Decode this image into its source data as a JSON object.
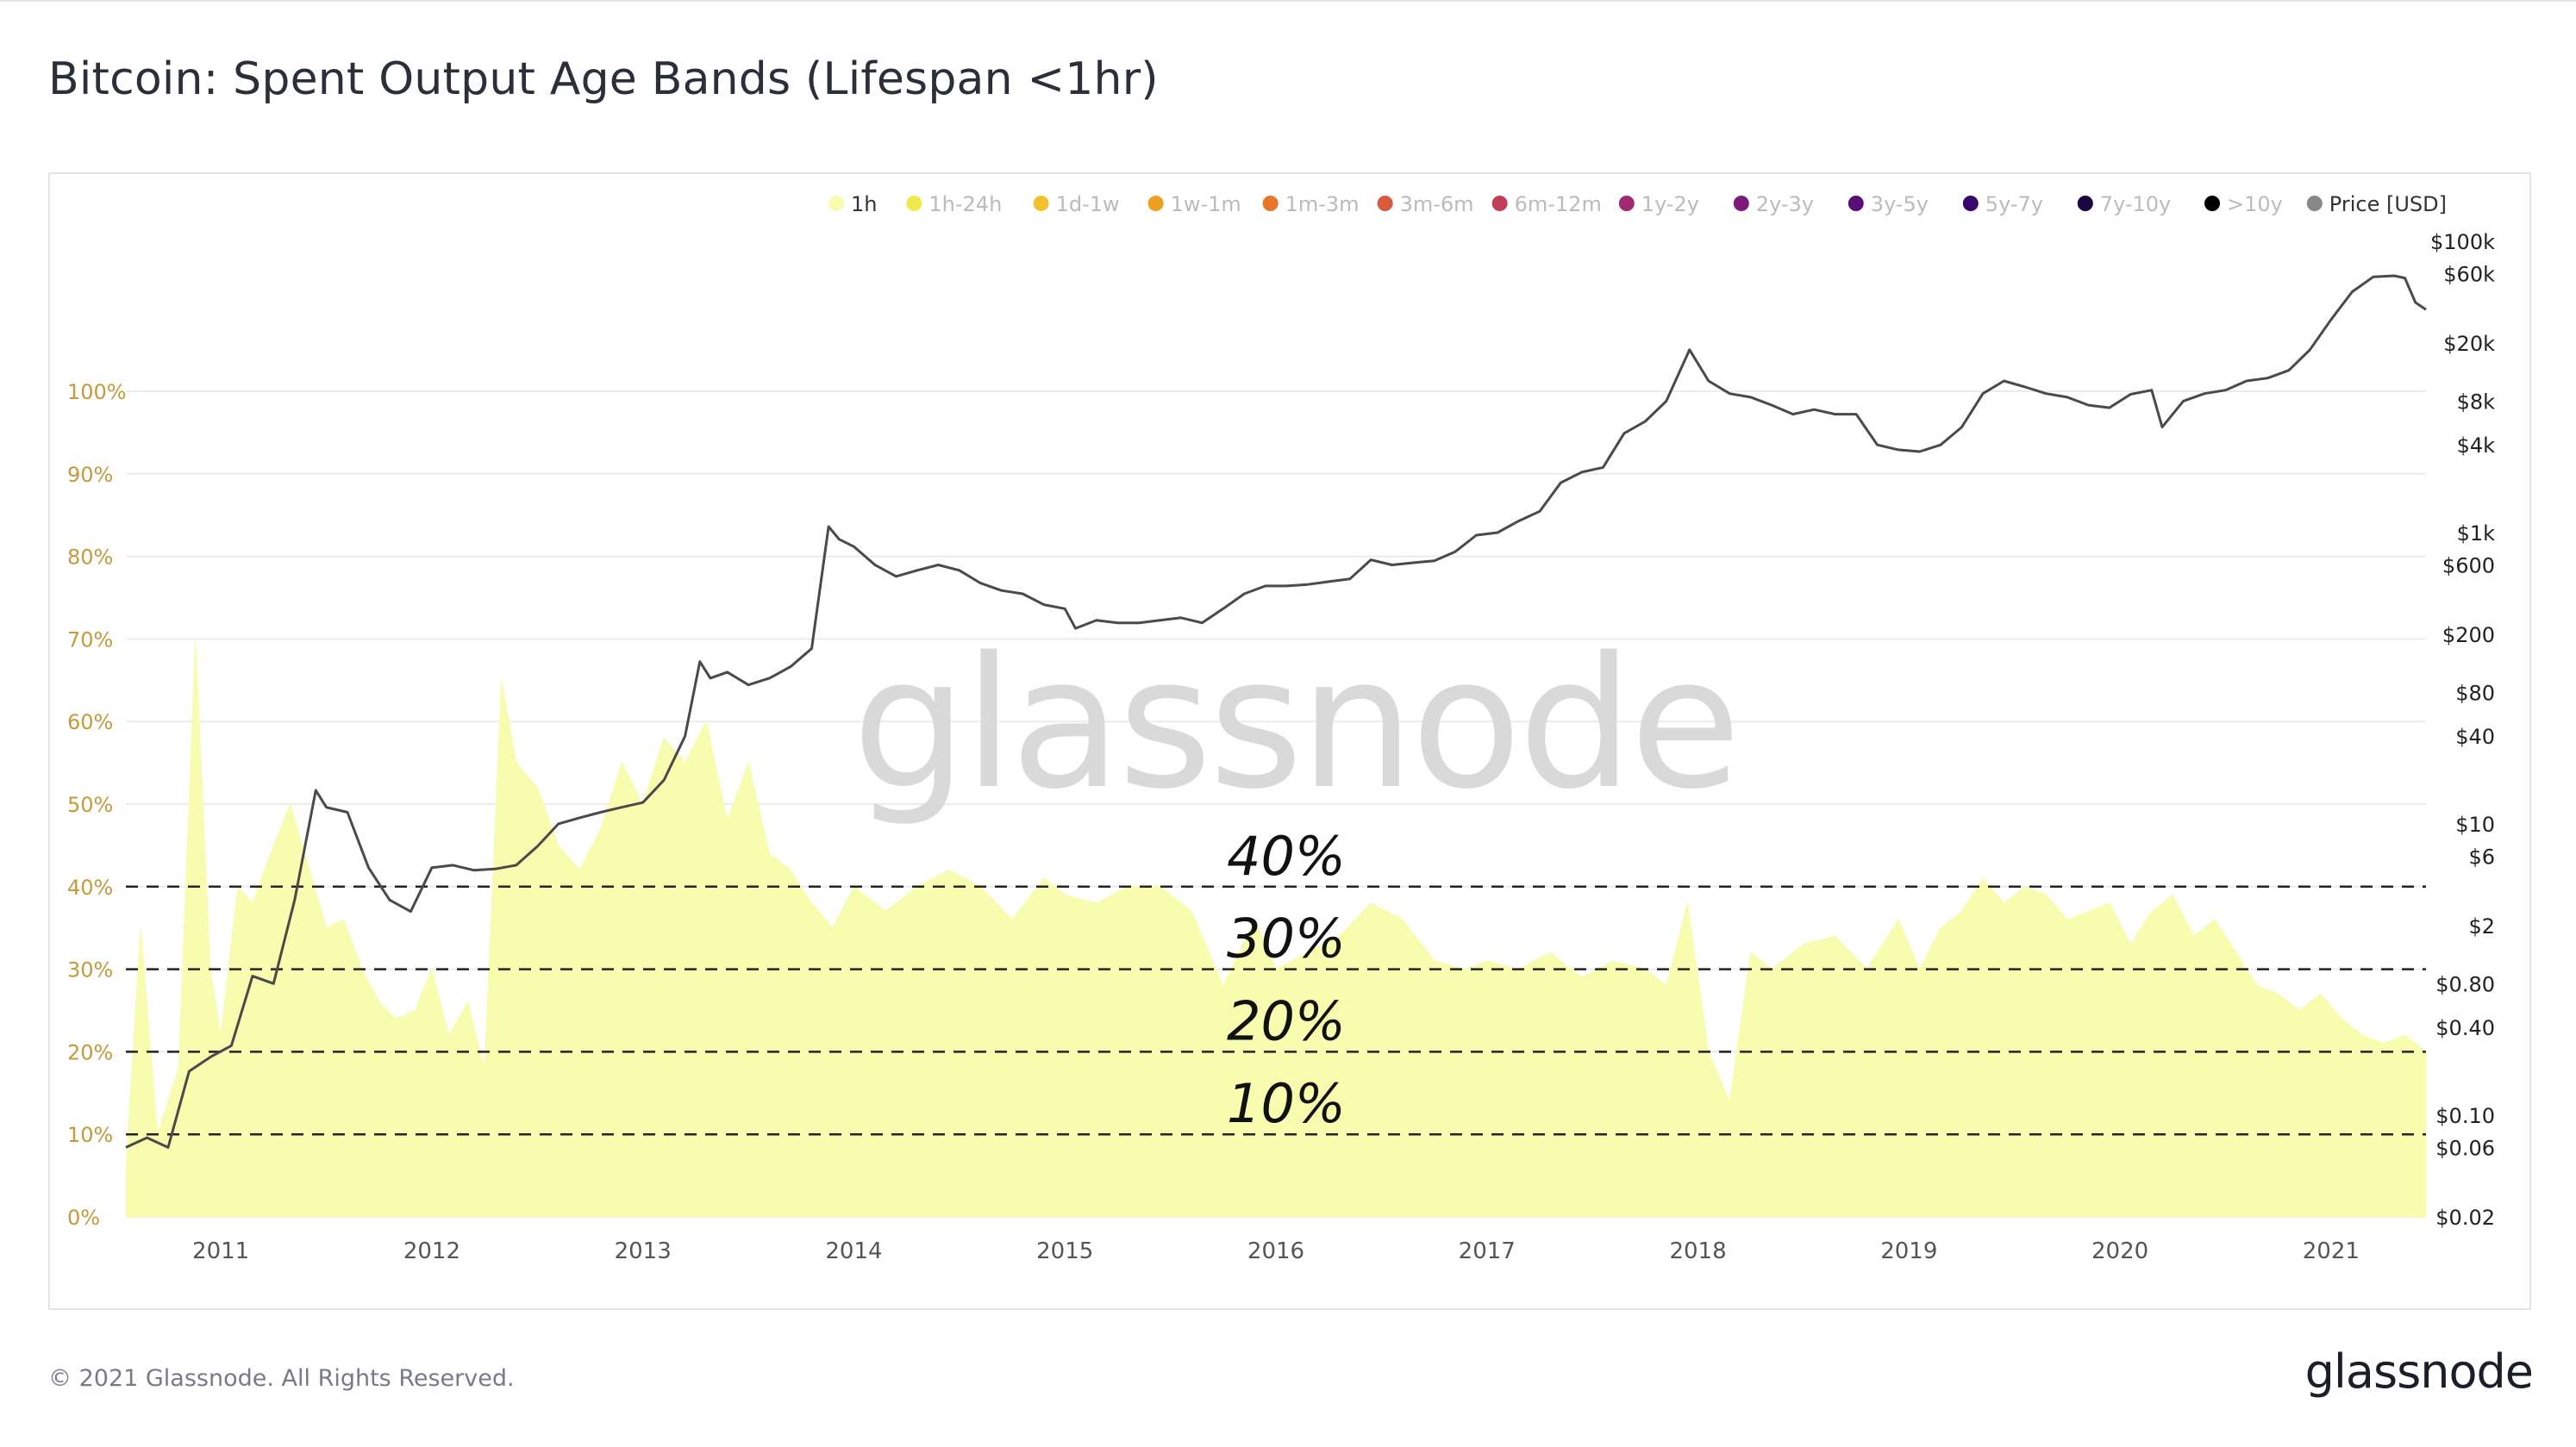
{
  "page": {
    "title": "Bitcoin: Spent Output Age Bands (Lifespan <1hr)",
    "copyright": "© 2021 Glassnode. All Rights Reserved.",
    "logo": "glassnode",
    "watermark": "glassnode"
  },
  "colors": {
    "area_fill": "#f7fcae",
    "price_line": "#4a4a4a",
    "left_tick": "#c49a3a",
    "right_tick": "#222222",
    "x_tick": "#555555",
    "legend_inactive": "#bbbbbb",
    "legend_active": "#333333"
  },
  "chart_data": {
    "type": "area",
    "title": "Bitcoin: Spent Output Age Bands (Lifespan <1hr)",
    "legend_position": "top-right",
    "legend": [
      {
        "label": "1h",
        "color": "#f7fcae",
        "active": true
      },
      {
        "label": "1h-24h",
        "color": "#f2e94e",
        "active": false
      },
      {
        "label": "1d-1w",
        "color": "#f2c12e",
        "active": false
      },
      {
        "label": "1w-1m",
        "color": "#f0a020",
        "active": false
      },
      {
        "label": "1m-3m",
        "color": "#e8742a",
        "active": false
      },
      {
        "label": "3m-6m",
        "color": "#d65a3c",
        "active": false
      },
      {
        "label": "6m-12m",
        "color": "#c0405a",
        "active": false
      },
      {
        "label": "1y-2y",
        "color": "#a02a70",
        "active": false
      },
      {
        "label": "2y-3y",
        "color": "#7e1a7a",
        "active": false
      },
      {
        "label": "3y-5y",
        "color": "#5a0f78",
        "active": false
      },
      {
        "label": "5y-7y",
        "color": "#36086a",
        "active": false
      },
      {
        "label": "7y-10y",
        "color": "#1a0640",
        "active": false
      },
      {
        "label": ">10y",
        "color": "#000000",
        "active": false
      },
      {
        "label": "Price [USD]",
        "color": "#888888",
        "active": true
      }
    ],
    "x_axis": {
      "range": [
        2010.55,
        2021.45
      ],
      "ticks": [
        {
          "label": "2011",
          "value": 2011
        },
        {
          "label": "2012",
          "value": 2012
        },
        {
          "label": "2013",
          "value": 2013
        },
        {
          "label": "2014",
          "value": 2014
        },
        {
          "label": "2015",
          "value": 2015
        },
        {
          "label": "2016",
          "value": 2016
        },
        {
          "label": "2017",
          "value": 2017
        },
        {
          "label": "2018",
          "value": 2018
        },
        {
          "label": "2019",
          "value": 2019
        },
        {
          "label": "2020",
          "value": 2020
        },
        {
          "label": "2021",
          "value": 2021
        }
      ]
    },
    "y_left": {
      "range": [
        0,
        100
      ],
      "unit": "%",
      "ticks": [
        {
          "label": "0%",
          "value": 0
        },
        {
          "label": "10%",
          "value": 10
        },
        {
          "label": "20%",
          "value": 20
        },
        {
          "label": "30%",
          "value": 30
        },
        {
          "label": "40%",
          "value": 40
        },
        {
          "label": "50%",
          "value": 50
        },
        {
          "label": "60%",
          "value": 60
        },
        {
          "label": "70%",
          "value": 70
        },
        {
          "label": "80%",
          "value": 80
        },
        {
          "label": "90%",
          "value": 90
        },
        {
          "label": "100%",
          "value": 100
        }
      ]
    },
    "y_right": {
      "scale": "log",
      "range": [
        0.02,
        100000
      ],
      "ticks": [
        {
          "label": "$100k",
          "value": 100000
        },
        {
          "label": "$60k",
          "value": 60000
        },
        {
          "label": "$20k",
          "value": 20000
        },
        {
          "label": "$8k",
          "value": 8000
        },
        {
          "label": "$4k",
          "value": 4000
        },
        {
          "label": "$1k",
          "value": 1000
        },
        {
          "label": "$600",
          "value": 600
        },
        {
          "label": "$200",
          "value": 200
        },
        {
          "label": "$80",
          "value": 80
        },
        {
          "label": "$40",
          "value": 40
        },
        {
          "label": "$10",
          "value": 10
        },
        {
          "label": "$6",
          "value": 6
        },
        {
          "label": "$2",
          "value": 2
        },
        {
          "label": "$0.80",
          "value": 0.8
        },
        {
          "label": "$0.40",
          "value": 0.4
        },
        {
          "label": "$0.10",
          "value": 0.1
        },
        {
          "label": "$0.06",
          "value": 0.06
        },
        {
          "label": "$0.02",
          "value": 0.02
        }
      ]
    },
    "reference_lines": [
      {
        "label": "40%",
        "value": 40
      },
      {
        "label": "30%",
        "value": 30
      },
      {
        "label": "20%",
        "value": 20
      },
      {
        "label": "10%",
        "value": 10
      }
    ],
    "series": [
      {
        "name": "1h",
        "axis": "left",
        "x": [
          2010.55,
          2010.62,
          2010.7,
          2010.8,
          2010.88,
          2010.95,
          2011.0,
          2011.08,
          2011.15,
          2011.25,
          2011.33,
          2011.42,
          2011.5,
          2011.58,
          2011.67,
          2011.75,
          2011.83,
          2011.92,
          2012.0,
          2012.08,
          2012.17,
          2012.25,
          2012.33,
          2012.4,
          2012.5,
          2012.6,
          2012.7,
          2012.8,
          2012.9,
          2013.0,
          2013.1,
          2013.2,
          2013.3,
          2013.4,
          2013.5,
          2013.6,
          2013.7,
          2013.8,
          2013.9,
          2014.0,
          2014.15,
          2014.3,
          2014.45,
          2014.6,
          2014.75,
          2014.9,
          2015.0,
          2015.15,
          2015.3,
          2015.45,
          2015.6,
          2015.75,
          2015.9,
          2016.0,
          2016.15,
          2016.3,
          2016.45,
          2016.6,
          2016.75,
          2016.9,
          2017.0,
          2017.15,
          2017.3,
          2017.45,
          2017.6,
          2017.75,
          2017.85,
          2017.95,
          2018.05,
          2018.15,
          2018.25,
          2018.35,
          2018.5,
          2018.65,
          2018.8,
          2018.95,
          2019.05,
          2019.15,
          2019.25,
          2019.35,
          2019.45,
          2019.55,
          2019.65,
          2019.75,
          2019.85,
          2019.95,
          2020.05,
          2020.15,
          2020.25,
          2020.35,
          2020.45,
          2020.55,
          2020.65,
          2020.75,
          2020.85,
          2020.95,
          2021.05,
          2021.15,
          2021.25,
          2021.35,
          2021.45
        ],
        "values": [
          6,
          35,
          10,
          18,
          70,
          30,
          22,
          40,
          38,
          45,
          50,
          42,
          35,
          36,
          30,
          26,
          24,
          25,
          30,
          22,
          26,
          18,
          65,
          55,
          52,
          45,
          42,
          47,
          55,
          50,
          58,
          55,
          60,
          48,
          55,
          44,
          42,
          38,
          35,
          40,
          37,
          40,
          42,
          40,
          36,
          41,
          39,
          38,
          40,
          40,
          37,
          28,
          36,
          30,
          32,
          34,
          38,
          36,
          31,
          30,
          31,
          30,
          32,
          29,
          31,
          30,
          28,
          38,
          20,
          14,
          32,
          30,
          33,
          34,
          30,
          36,
          30,
          35,
          37,
          41,
          38,
          40,
          39,
          36,
          37,
          38,
          33,
          37,
          39,
          34,
          36,
          32,
          28,
          27,
          25,
          27,
          24,
          22,
          21,
          22,
          20
        ]
      },
      {
        "name": "Price [USD]",
        "axis": "right",
        "x": [
          2010.55,
          2010.65,
          2010.75,
          2010.85,
          2010.95,
          2011.05,
          2011.15,
          2011.25,
          2011.35,
          2011.45,
          2011.5,
          2011.6,
          2011.7,
          2011.8,
          2011.9,
          2012.0,
          2012.1,
          2012.2,
          2012.3,
          2012.4,
          2012.5,
          2012.6,
          2012.7,
          2012.8,
          2012.9,
          2013.0,
          2013.1,
          2013.2,
          2013.27,
          2013.32,
          2013.4,
          2013.5,
          2013.6,
          2013.7,
          2013.8,
          2013.88,
          2013.93,
          2014.0,
          2014.1,
          2014.2,
          2014.3,
          2014.4,
          2014.5,
          2014.6,
          2014.7,
          2014.8,
          2014.9,
          2015.0,
          2015.05,
          2015.15,
          2015.25,
          2015.35,
          2015.45,
          2015.55,
          2015.65,
          2015.75,
          2015.85,
          2015.95,
          2016.05,
          2016.15,
          2016.25,
          2016.35,
          2016.45,
          2016.55,
          2016.65,
          2016.75,
          2016.85,
          2016.95,
          2017.05,
          2017.15,
          2017.25,
          2017.35,
          2017.45,
          2017.55,
          2017.65,
          2017.75,
          2017.85,
          2017.96,
          2018.05,
          2018.15,
          2018.25,
          2018.35,
          2018.45,
          2018.55,
          2018.65,
          2018.75,
          2018.85,
          2018.95,
          2019.05,
          2019.15,
          2019.25,
          2019.35,
          2019.45,
          2019.55,
          2019.65,
          2019.75,
          2019.85,
          2019.95,
          2020.05,
          2020.15,
          2020.2,
          2020.3,
          2020.4,
          2020.5,
          2020.6,
          2020.7,
          2020.8,
          2020.9,
          2021.0,
          2021.1,
          2021.2,
          2021.3,
          2021.35,
          2021.4,
          2021.45
        ],
        "values": [
          0.06,
          0.07,
          0.06,
          0.2,
          0.25,
          0.3,
          0.9,
          0.8,
          3,
          17,
          13,
          12,
          5,
          3,
          2.5,
          5,
          5.2,
          4.8,
          4.9,
          5.2,
          7,
          10,
          11,
          12,
          13,
          14,
          20,
          40,
          130,
          100,
          110,
          90,
          100,
          120,
          160,
          1100,
          900,
          800,
          600,
          500,
          550,
          600,
          550,
          450,
          400,
          380,
          320,
          300,
          220,
          250,
          240,
          240,
          250,
          260,
          240,
          300,
          380,
          430,
          430,
          440,
          460,
          480,
          650,
          600,
          620,
          640,
          740,
          960,
          1000,
          1200,
          1400,
          2200,
          2600,
          2800,
          4800,
          5800,
          8000,
          18000,
          11000,
          9000,
          8500,
          7500,
          6500,
          7000,
          6500,
          6500,
          4000,
          3700,
          3600,
          4000,
          5300,
          9000,
          11000,
          10000,
          9000,
          8500,
          7500,
          7200,
          8900,
          9500,
          5300,
          8000,
          9000,
          9500,
          11000,
          11500,
          13000,
          18000,
          29000,
          45000,
          57000,
          58000,
          56000,
          38000,
          34000
        ]
      }
    ]
  }
}
